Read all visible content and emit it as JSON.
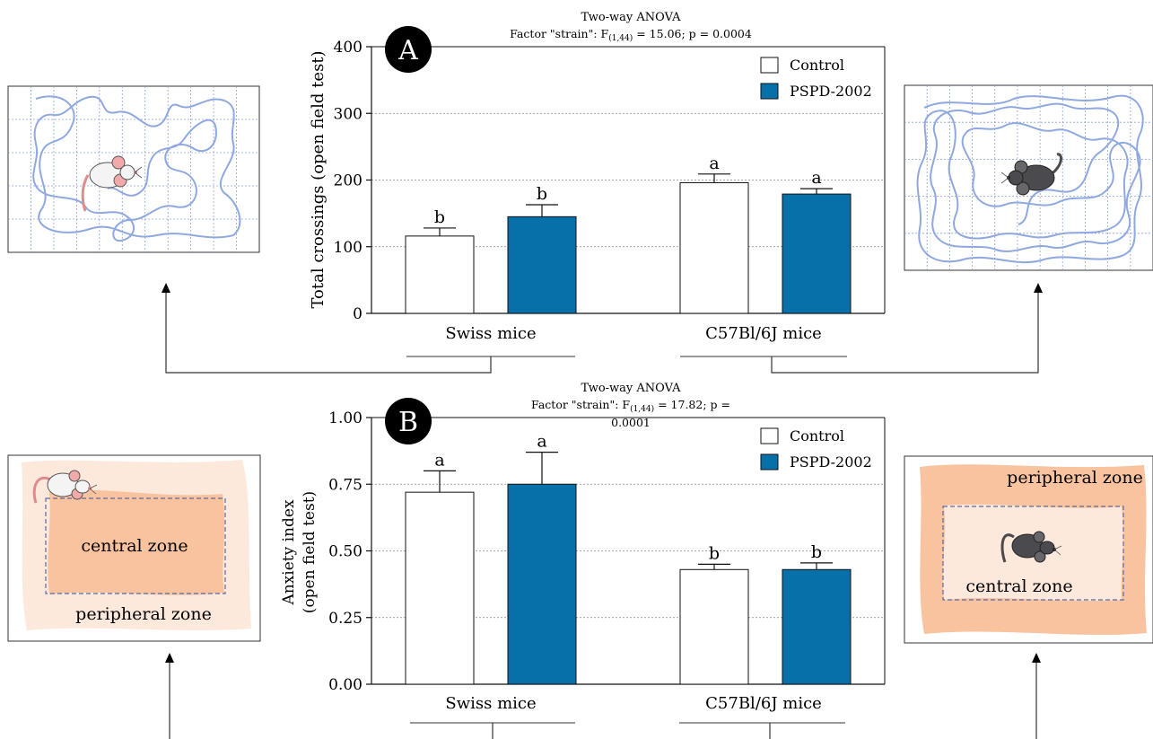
{
  "chart_data": [
    {
      "type": "bar",
      "panel_label": "A",
      "anova_title": "Two-way ANOVA",
      "anova_stat_prefix": "Factor \"strain\": F",
      "anova_stat_sub": "(1,44)",
      "anova_stat_suffix": " = 15.06; p = 0.0004",
      "ylabel": "Total crossings (open field test)",
      "ylim": [
        0,
        400
      ],
      "yticks": [
        "0",
        "100",
        "200",
        "300",
        "400"
      ],
      "categories": [
        "Swiss mice",
        "C57Bl/6J mice"
      ],
      "legend_position": "top-right",
      "grid": true,
      "series": [
        {
          "name": "Control",
          "color": "#ffffff",
          "values": [
            116,
            196
          ],
          "errors": [
            12,
            13
          ],
          "letters": [
            "b",
            "a"
          ]
        },
        {
          "name": "PSPD-2002",
          "color": "#0870a8",
          "values": [
            145,
            179
          ],
          "errors": [
            18,
            8
          ],
          "letters": [
            "b",
            "a"
          ]
        }
      ]
    },
    {
      "type": "bar",
      "panel_label": "B",
      "anova_title": "Two-way ANOVA",
      "anova_stat_prefix": "Factor \"strain\": F",
      "anova_stat_sub": "(1,44)",
      "anova_stat_suffix": " = 17.82; p =",
      "anova_stat_line2": "0.0001",
      "ylabel": "Anxiety index",
      "ylabel2": "(open field test)",
      "ylim": [
        0,
        1.0
      ],
      "yticks": [
        "0.00",
        "0.25",
        "0.50",
        "0.75",
        "1.00"
      ],
      "categories": [
        "Swiss mice",
        "C57Bl/6J mice"
      ],
      "legend_position": "top-right",
      "grid": true,
      "series": [
        {
          "name": "Control",
          "color": "#ffffff",
          "values": [
            0.72,
            0.43
          ],
          "errors": [
            0.08,
            0.02
          ],
          "letters": [
            "a",
            "b"
          ]
        },
        {
          "name": "PSPD-2002",
          "color": "#0870a8",
          "values": [
            0.75,
            0.43
          ],
          "errors": [
            0.12,
            0.025
          ],
          "letters": [
            "a",
            "b"
          ]
        }
      ]
    }
  ],
  "illustrations": {
    "zone_labels": {
      "left_central": "central zone",
      "left_peripheral": "peripheral zone",
      "right_peripheral": "peripheral zone",
      "right_central": "central zone"
    },
    "colors": {
      "track": "#8fa9e0",
      "grid": "#7f99d8",
      "zone_outer": "#fde8dc",
      "zone_inner": "#f8c39e",
      "zone_center_light": "#fde8dc",
      "white_mouse": "#f4f4f4",
      "white_mouse_ear": "#f2a9a9",
      "black_mouse": "#4a4a4f"
    },
    "icons": [
      "white-mouse-icon",
      "black-mouse-icon"
    ]
  }
}
